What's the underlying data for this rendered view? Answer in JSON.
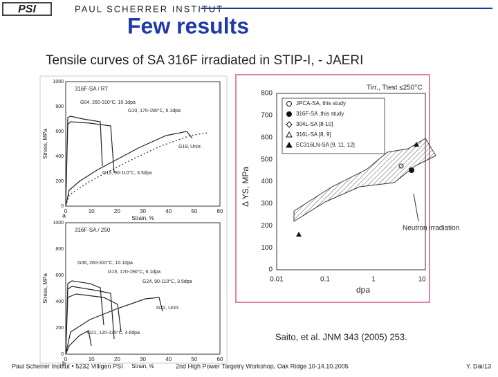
{
  "header": {
    "logo": "PSI",
    "institute": "PAUL SCHERRER INSTITUT"
  },
  "title": "Few results",
  "subtitle": "Tensile curves of SA 316F irradiated in STIP-I,  - JAERI",
  "figure_left": {
    "top": {
      "panel": "a",
      "legend": "316F-SA / RT",
      "y_label": "Stress, MPa",
      "x_label": "Strain, %",
      "xticks": [
        "0",
        "10",
        "20",
        "30",
        "40",
        "50",
        "60"
      ],
      "yticks": [
        "0",
        "200",
        "400",
        "600",
        "800",
        "1000"
      ],
      "annotations": [
        "G04, 260-310°C, 10.1dpa",
        "G10, 170-190°C, 6.1dpa",
        "G19, Unirr.",
        "G15, 90-110°C, 3.5dpa"
      ]
    },
    "bottom": {
      "panel": "b",
      "legend": "316F-SA / 250",
      "y_label": "Stress, MPa",
      "x_label": "Strain, %",
      "xticks": [
        "0",
        "10",
        "20",
        "30",
        "40",
        "50",
        "60"
      ],
      "yticks": [
        "0",
        "200",
        "400",
        "600",
        "800",
        "1000"
      ],
      "annotations": [
        "G06, 260-310°C, 10.1dpa",
        "G15, 170-190°C, 6.1dpa",
        "G24, 90-110°C, 3.5dpa",
        "G22, Unirr.",
        "G21, 120-135°C, 4.6dpa"
      ]
    }
  },
  "figure_right": {
    "header": "Tirr., Ttest ≤250°C",
    "y_label": "Δ YS, MPa",
    "x_label": "dpa",
    "yticks": [
      "0",
      "100",
      "200",
      "300",
      "400",
      "500",
      "600",
      "700",
      "800"
    ],
    "xticks": [
      "0.01",
      "0.1",
      "1",
      "10"
    ],
    "legend": [
      "JPCA-SA, this study",
      "316F-SA ,this study",
      "304L-SA [8-10]",
      "316L-SA [8, 9]",
      "EC316LN-SA [9, 11, 12]"
    ],
    "annotation": "Neutron irradiation"
  },
  "citation": "Saito, et al.  JNM 343 (2005) 253.",
  "footer": {
    "left": "Paul Scherrer Institut • 5232 Villigen PSI",
    "center": "2nd High Power Targetry Workshop, Oak Ridge 10-14.10.2005",
    "right": "Y. Dai/13"
  }
}
